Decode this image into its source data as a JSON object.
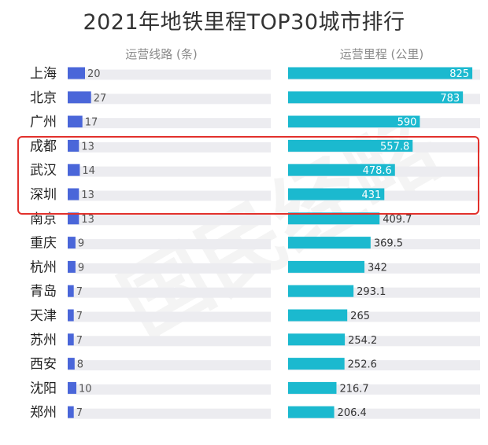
{
  "chart_data": {
    "type": "bar",
    "title": "2021年地铁里程TOP30城市排行",
    "watermark": "国民经略",
    "colors": {
      "lines_bar": "#4a66d9",
      "mileage_bar": "#1bb9cf",
      "track": "#ececf0",
      "highlight": "#e2312c"
    },
    "categories": [
      "上海",
      "北京",
      "广州",
      "成都",
      "武汉",
      "深圳",
      "南京",
      "重庆",
      "杭州",
      "青岛",
      "天津",
      "苏州",
      "西安",
      "沈阳",
      "郑州"
    ],
    "highlighted": [
      "成都",
      "武汉",
      "深圳"
    ],
    "series": [
      {
        "name": "运营线路 (条)",
        "values": [
          20,
          27,
          17,
          13,
          14,
          13,
          13,
          9,
          9,
          7,
          7,
          7,
          8,
          10,
          7
        ],
        "labels": [
          "20",
          "27",
          "17",
          "13",
          "14",
          "13",
          "13",
          "9",
          "9",
          "7",
          "7",
          "7",
          "8",
          "10",
          "7"
        ]
      },
      {
        "name": "运营里程 (公里)",
        "values": [
          825,
          783,
          590,
          557.8,
          478.6,
          431,
          409.7,
          369.5,
          342,
          293.1,
          265,
          254.2,
          252.6,
          216.7,
          206.4
        ],
        "labels": [
          "825",
          "783",
          "590",
          "557.8",
          "478.6",
          "431",
          "409.7",
          "369.5",
          "342",
          "293.1",
          "265",
          "254.2",
          "252.6",
          "216.7",
          "206.4"
        ]
      }
    ]
  }
}
